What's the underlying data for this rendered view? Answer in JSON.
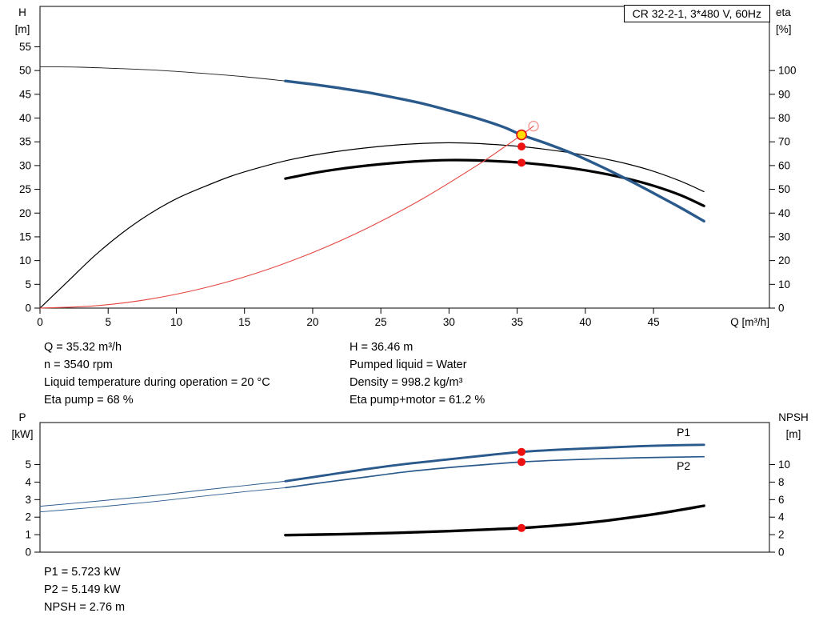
{
  "model_box": "CR 32-2-1, 3*480 V, 60Hz",
  "info_top": {
    "left": [
      "Q = 35.32 m³/h",
      "n = 3540 rpm",
      "Liquid temperature during operation = 20 °C",
      "Eta pump = 68 %"
    ],
    "right": [
      "H = 36.46 m",
      "Pumped liquid = Water",
      "Density = 998.2 kg/m³",
      "Eta pump+motor = 61.2 %"
    ]
  },
  "info_bottom": [
    "P1 = 5.723 kW",
    "P2 = 5.149 kW",
    "NPSH = 2.76 m"
  ],
  "colors": {
    "curve_blue": "#2a5a8c",
    "curve_black": "#000000",
    "system_red": "#e4453f",
    "marker_red": "#ee1111",
    "marker_yellow": "#ffdd00"
  },
  "chart_data": [
    {
      "type": "line",
      "name": "qh-efficiency-chart",
      "x": {
        "label": "Q [m³/h]",
        "min": 0,
        "max": 53.5,
        "ticks": [
          0,
          5,
          10,
          15,
          20,
          25,
          30,
          35,
          40,
          45
        ]
      },
      "y_left": {
        "label": "H",
        "unit": "[m]",
        "min": 0,
        "max": 63.5,
        "ticks": [
          0,
          5,
          10,
          15,
          20,
          25,
          30,
          35,
          40,
          45,
          50,
          55
        ]
      },
      "y_right": {
        "label": "eta",
        "unit": "[%]",
        "min": 0,
        "max": 127,
        "ticks": [
          0,
          10,
          20,
          30,
          40,
          50,
          60,
          70,
          80,
          90,
          100
        ]
      },
      "legend": "none",
      "grid": false,
      "series": [
        {
          "name": "pump-curve-out-of-range",
          "axis": "left",
          "color": "#1a1a1a",
          "width": 0.9,
          "points": [
            [
              0,
              50.8
            ],
            [
              3,
              50.7
            ],
            [
              6,
              50.4
            ],
            [
              9,
              50.0
            ],
            [
              12,
              49.4
            ],
            [
              15,
              48.7
            ],
            [
              18,
              47.8
            ]
          ]
        },
        {
          "name": "eta-pump",
          "axis": "right",
          "color": "#000000",
          "width": 1.2,
          "points": [
            [
              0,
              0
            ],
            [
              2,
              11
            ],
            [
              4,
              22
            ],
            [
              6,
              31.5
            ],
            [
              8,
              39.5
            ],
            [
              10,
              46
            ],
            [
              12,
              51
            ],
            [
              14,
              55.5
            ],
            [
              16,
              59
            ],
            [
              18,
              62
            ],
            [
              20,
              64.3
            ],
            [
              22,
              66.1
            ],
            [
              24,
              67.5
            ],
            [
              26,
              68.6
            ],
            [
              28,
              69.3
            ],
            [
              30,
              69.6
            ],
            [
              32,
              69.3
            ],
            [
              34,
              68.6
            ],
            [
              35.32,
              68
            ],
            [
              37,
              66.9
            ],
            [
              39,
              65.3
            ],
            [
              41,
              63.3
            ],
            [
              43,
              60.8
            ],
            [
              45,
              57.6
            ],
            [
              47,
              53.4
            ],
            [
              48.7,
              49
            ]
          ]
        },
        {
          "name": "eta-pump-motor",
          "axis": "right",
          "color": "#000000",
          "width": 3.2,
          "points": [
            [
              18,
              54.5
            ],
            [
              20,
              56.8
            ],
            [
              22,
              58.6
            ],
            [
              24,
              60.0
            ],
            [
              26,
              61.1
            ],
            [
              28,
              61.9
            ],
            [
              30,
              62.3
            ],
            [
              32,
              62.2
            ],
            [
              34,
              61.7
            ],
            [
              35.32,
              61.2
            ],
            [
              37,
              60.3
            ],
            [
              39,
              58.9
            ],
            [
              41,
              57.0
            ],
            [
              43,
              54.6
            ],
            [
              45,
              51.5
            ],
            [
              47,
              47.5
            ],
            [
              48.7,
              43
            ]
          ]
        },
        {
          "name": "system-curve",
          "axis": "left",
          "color": "#e4453f",
          "width": 1.1,
          "points": [
            [
              0,
              0
            ],
            [
              4,
              0.47
            ],
            [
              8,
              1.87
            ],
            [
              12,
              4.21
            ],
            [
              16,
              7.48
            ],
            [
              20,
              11.69
            ],
            [
              24,
              16.83
            ],
            [
              28,
              22.91
            ],
            [
              32,
              29.93
            ],
            [
              34,
              33.79
            ],
            [
              35.32,
              36.46
            ],
            [
              36.2,
              38.3
            ]
          ]
        },
        {
          "name": "pump-curve",
          "axis": "left",
          "color": "#2a5a8c",
          "width": 3.4,
          "points": [
            [
              18,
              47.8
            ],
            [
              20,
              47.1
            ],
            [
              22,
              46.3
            ],
            [
              24,
              45.4
            ],
            [
              26,
              44.3
            ],
            [
              28,
              43.1
            ],
            [
              30,
              41.6
            ],
            [
              32,
              40.0
            ],
            [
              34,
              38.1
            ],
            [
              35.32,
              36.46
            ],
            [
              37,
              34.8
            ],
            [
              39,
              32.6
            ],
            [
              41,
              30.0
            ],
            [
              43,
              27.2
            ],
            [
              45,
              24.2
            ],
            [
              47,
              21.1
            ],
            [
              48.7,
              18.3
            ]
          ]
        }
      ],
      "markers": [
        {
          "name": "rated-point-marker",
          "axis": "left",
          "x": 36.2,
          "y": 38.3,
          "r": 6,
          "fill": "none",
          "stroke": "#f49a95",
          "sw": 1.4
        },
        {
          "name": "duty-point-marker",
          "axis": "left",
          "x": 35.32,
          "y": 36.46,
          "r": 6,
          "fill": "#ffdd00",
          "stroke": "#e01010",
          "sw": 1.7
        },
        {
          "name": "eta-pump-point",
          "axis": "right",
          "x": 35.32,
          "y": 68,
          "r": 5,
          "fill": "#ee1111"
        },
        {
          "name": "eta-pump-motor-point",
          "axis": "right",
          "x": 35.32,
          "y": 61.2,
          "r": 5,
          "fill": "#ee1111"
        }
      ],
      "annotations": []
    },
    {
      "type": "line",
      "name": "power-npsh-chart",
      "x": {
        "label": "",
        "min": 0,
        "max": 53.5,
        "ticks": []
      },
      "y_left": {
        "label": "P",
        "unit": "[kW]",
        "min": 0,
        "max": 7.4,
        "ticks": [
          0,
          1,
          2,
          3,
          4,
          5
        ]
      },
      "y_right": {
        "label": "NPSH",
        "unit": "[m]",
        "min": 0,
        "max": 14.8,
        "ticks": [
          0,
          2,
          4,
          6,
          8,
          10
        ]
      },
      "legend": "inline",
      "grid": false,
      "series": [
        {
          "name": "p1-out-of-range",
          "axis": "left",
          "color": "#2a5a8c",
          "width": 1,
          "points": [
            [
              0,
              2.62
            ],
            [
              4,
              2.9
            ],
            [
              8,
              3.2
            ],
            [
              12,
              3.55
            ],
            [
              15,
              3.8
            ],
            [
              18,
              4.05
            ]
          ]
        },
        {
          "name": "p2-out-of-range",
          "axis": "left",
          "color": "#2a5a8c",
          "width": 0.9,
          "points": [
            [
              0,
              2.3
            ],
            [
              4,
              2.56
            ],
            [
              8,
              2.86
            ],
            [
              12,
              3.2
            ],
            [
              15,
              3.45
            ],
            [
              18,
              3.68
            ]
          ]
        },
        {
          "name": "p2-curve",
          "axis": "left",
          "color": "#2a5a8c",
          "width": 1.7,
          "points": [
            [
              18,
              3.68
            ],
            [
              21,
              4.0
            ],
            [
              24,
              4.3
            ],
            [
              27,
              4.6
            ],
            [
              30,
              4.83
            ],
            [
              33,
              5.02
            ],
            [
              35.32,
              5.149
            ],
            [
              38,
              5.25
            ],
            [
              41,
              5.33
            ],
            [
              44,
              5.39
            ],
            [
              48.7,
              5.45
            ]
          ]
        },
        {
          "name": "p1-curve",
          "axis": "left",
          "color": "#2a5a8c",
          "width": 2.9,
          "points": [
            [
              18,
              4.05
            ],
            [
              21,
              4.4
            ],
            [
              24,
              4.75
            ],
            [
              27,
              5.05
            ],
            [
              30,
              5.3
            ],
            [
              33,
              5.55
            ],
            [
              35.32,
              5.723
            ],
            [
              38,
              5.85
            ],
            [
              41,
              5.95
            ],
            [
              44,
              6.05
            ],
            [
              46.5,
              6.1
            ],
            [
              48.7,
              6.13
            ]
          ]
        },
        {
          "name": "npsh-curve",
          "axis": "right",
          "color": "#000000",
          "width": 3.4,
          "points": [
            [
              18,
              1.95
            ],
            [
              22,
              2.05
            ],
            [
              26,
              2.2
            ],
            [
              30,
              2.4
            ],
            [
              33,
              2.6
            ],
            [
              35.32,
              2.76
            ],
            [
              38,
              3.05
            ],
            [
              41,
              3.5
            ],
            [
              44,
              4.1
            ],
            [
              46.5,
              4.7
            ],
            [
              48.7,
              5.3
            ]
          ]
        }
      ],
      "markers": [
        {
          "name": "p1-point",
          "axis": "left",
          "x": 35.32,
          "y": 5.723,
          "r": 5,
          "fill": "#ee1111"
        },
        {
          "name": "p2-point",
          "axis": "left",
          "x": 35.32,
          "y": 5.149,
          "r": 5,
          "fill": "#ee1111"
        },
        {
          "name": "npsh-point",
          "axis": "right",
          "x": 35.32,
          "y": 2.76,
          "r": 5,
          "fill": "#ee1111"
        }
      ],
      "annotations": [
        {
          "text": "P1",
          "axis": "left",
          "x": 46.7,
          "y": 6.62,
          "color": "#2a5a8c"
        },
        {
          "text": "P2",
          "axis": "left",
          "x": 46.7,
          "y": 4.7,
          "color": "#2a5a8c"
        }
      ]
    }
  ]
}
